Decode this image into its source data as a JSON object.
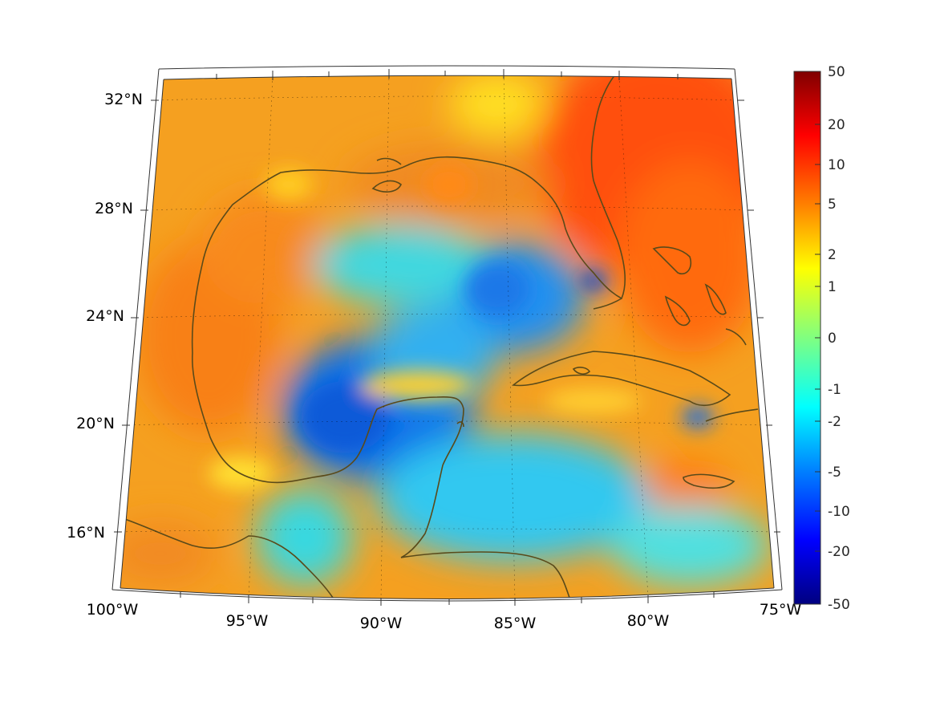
{
  "map": {
    "projection": "conic",
    "lon_range": [
      -100,
      -75
    ],
    "lat_range": [
      14,
      33
    ],
    "coastline_color": "#5a4a1a",
    "grid": true,
    "lat_labels": [
      "32°N",
      "28°N",
      "24°N",
      "20°N",
      "16°N"
    ],
    "lon_labels": [
      "100°W",
      "95°W",
      "90°W",
      "85°W",
      "80°W",
      "75°W"
    ]
  },
  "colorbar": {
    "colormap": "jet",
    "placement": "right",
    "tick_labels": [
      "50",
      "20",
      "10",
      "5",
      "2",
      "1",
      "0",
      "-1",
      "-2",
      "-5",
      "-10",
      "-20",
      "-50"
    ]
  },
  "chart_data": {
    "type": "heatmap",
    "description_level": "field over Gulf of Mexico and Caribbean",
    "colorbar_ticks": [
      50,
      20,
      10,
      5,
      2,
      1,
      0,
      -1,
      -2,
      -5,
      -10,
      -20,
      -50
    ],
    "colorbar_range": [
      -50,
      50
    ]
  }
}
